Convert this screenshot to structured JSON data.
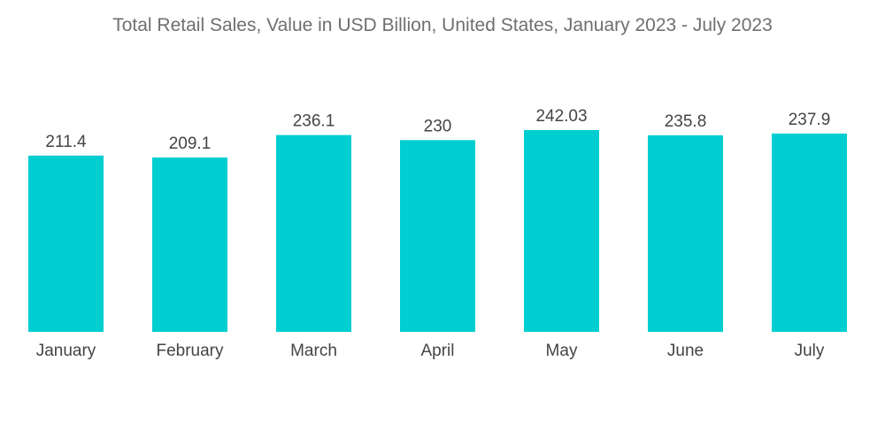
{
  "chart_data": {
    "type": "bar",
    "title": "Total Retail Sales, Value in USD Billion, United States, January 2023 - July 2023",
    "categories": [
      "January",
      "February",
      "March",
      "April",
      "May",
      "June",
      "July"
    ],
    "values": [
      211.4,
      209.1,
      236.1,
      230,
      242.03,
      235.8,
      237.9
    ],
    "value_labels": [
      "211.4",
      "209.1",
      "236.1",
      "230",
      "242.03",
      "235.8",
      "237.9"
    ],
    "xlabel": "",
    "ylabel": "",
    "ylim": [
      0,
      242.03
    ],
    "grid": false,
    "legend": "none",
    "bar_color": "#00ced1"
  }
}
